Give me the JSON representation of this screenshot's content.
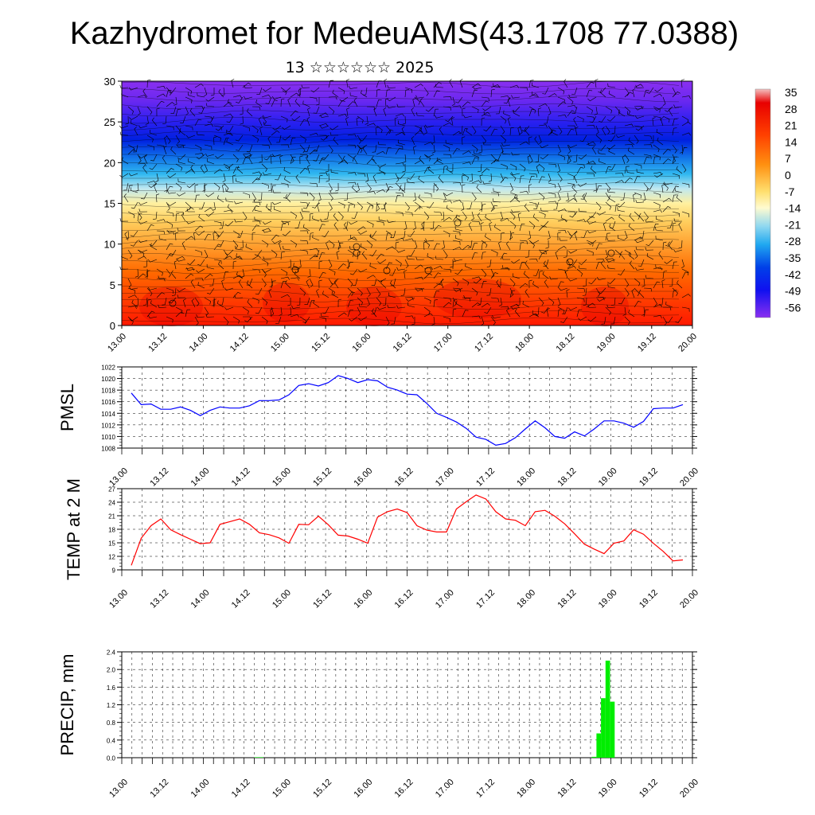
{
  "header": {
    "title": "Kazhydromet for MedeuAMS(43.1708 77.0388)",
    "subtitle": "13 ☆☆☆☆☆☆ 2025"
  },
  "time_labels": [
    "13.00",
    "13.12",
    "14.00",
    "14.12",
    "15.00",
    "15.12",
    "16.00",
    "16.12",
    "17.00",
    "17.12",
    "18.00",
    "18.12",
    "19.00",
    "19.12",
    "20.00"
  ],
  "colorbar": {
    "labels": [
      "35",
      "28",
      "21",
      "14",
      "7",
      "0",
      "-7",
      "-14",
      "-21",
      "-28",
      "-35",
      "-42",
      "-49",
      "-56"
    ]
  },
  "chart_data": [
    {
      "type": "heatmap",
      "title": "",
      "xlabel": "",
      "ylabel": "",
      "categories": [
        "13.00",
        "13.12",
        "14.00",
        "14.12",
        "15.00",
        "15.12",
        "16.00",
        "16.12",
        "17.00",
        "17.12",
        "18.00",
        "18.12",
        "19.00",
        "19.12",
        "20.00"
      ],
      "ylim": [
        0,
        30
      ],
      "yticks": [
        0,
        5,
        10,
        15,
        20,
        25,
        30
      ],
      "colorbar_range": [
        -63,
        42
      ],
      "description_of_field": "temperature shaded by height with wind barbs overlaid; warm (red) near the surface, cold (blue/violet) above 20",
      "grid": false
    },
    {
      "type": "line",
      "ylabel": "PMSL",
      "color": "#0000ff",
      "ylim": [
        1008,
        1022
      ],
      "yticks": [
        1008,
        1010,
        1012,
        1014,
        1016,
        1018,
        1020,
        1022
      ],
      "x_steps_per_label": 2,
      "values": [
        1017.5,
        1015.5,
        1015.6,
        1014.7,
        1014.7,
        1015.1,
        1014.5,
        1013.6,
        1014.5,
        1015.1,
        1014.9,
        1014.9,
        1015.3,
        1016.2,
        1016.2,
        1016.3,
        1017.2,
        1018.8,
        1019.1,
        1018.7,
        1019.3,
        1020.5,
        1020.0,
        1019.3,
        1019.8,
        1019.6,
        1018.5,
        1018.0,
        1017.3,
        1017.2,
        1015.7,
        1014.0,
        1013.3,
        1012.5,
        1011.4,
        1009.9,
        1009.5,
        1008.5,
        1008.8,
        1009.8,
        1011.3,
        1012.7,
        1011.5,
        1010.0,
        1009.7,
        1010.8,
        1010.1,
        1011.3,
        1012.7,
        1012.7,
        1012.3,
        1011.6,
        1012.6,
        1014.8,
        1014.9,
        1014.9,
        1015.5
      ]
    },
    {
      "type": "line",
      "ylabel": "TEMP at 2 M",
      "color": "#ff0000",
      "ylim": [
        9,
        27
      ],
      "yticks": [
        9,
        12,
        15,
        18,
        21,
        24,
        27
      ],
      "x_steps_per_label": 2,
      "values": [
        10.0,
        16.0,
        18.8,
        20.3,
        17.9,
        16.8,
        15.8,
        14.8,
        15.0,
        19.1,
        19.7,
        20.3,
        19.1,
        17.2,
        16.8,
        16.1,
        14.9,
        19.1,
        19.0,
        20.9,
        19.0,
        16.7,
        16.5,
        15.8,
        14.9,
        20.7,
        21.9,
        22.5,
        21.7,
        18.8,
        17.8,
        17.4,
        17.4,
        22.5,
        24.1,
        25.6,
        24.7,
        21.9,
        20.3,
        20.0,
        18.8,
        21.9,
        22.2,
        20.9,
        19.2,
        17.0,
        14.7,
        13.6,
        12.6,
        14.9,
        15.4,
        17.9,
        16.9,
        14.9,
        13.1,
        11.0,
        11.2
      ]
    },
    {
      "type": "bar",
      "ylabel": "PRECIP, mm",
      "color": "#00ee00",
      "ylim": [
        0,
        2.4
      ],
      "yticks": [
        "0.0",
        "0.4",
        "0.8",
        "1.2",
        "1.6",
        "2.0",
        "2.4"
      ],
      "x_steps_per_label": 4,
      "values": [
        0,
        0,
        0,
        0,
        0,
        0,
        0,
        0,
        0,
        0,
        0,
        0,
        0,
        0,
        0,
        0,
        0,
        0,
        0,
        0,
        0,
        0,
        0,
        0,
        0,
        0,
        0,
        0,
        0.01,
        0.01,
        0,
        0,
        0,
        0,
        0,
        0,
        0,
        0,
        0,
        0,
        0,
        0,
        0,
        0,
        0,
        0,
        0,
        0,
        0,
        0,
        0,
        0,
        0,
        0,
        0,
        0,
        0,
        0,
        0,
        0,
        0,
        0,
        0,
        0,
        0,
        0,
        0,
        0,
        0,
        0,
        0,
        0,
        0,
        0,
        0,
        0,
        0,
        0,
        0,
        0,
        0,
        0,
        0,
        0,
        0,
        0,
        0,
        0,
        0,
        0,
        0,
        0,
        0,
        0,
        0,
        0,
        0,
        0,
        0,
        0,
        0,
        0,
        0.02,
        0.55,
        1.35,
        2.2,
        1.27,
        0,
        0,
        0,
        0,
        0,
        0,
        0,
        0,
        0,
        0,
        0,
        0,
        0,
        0,
        0,
        0
      ]
    }
  ]
}
